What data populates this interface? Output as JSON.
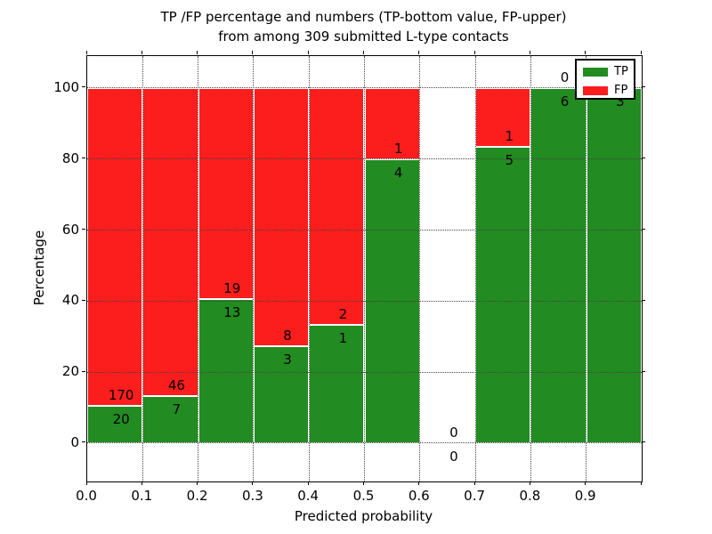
{
  "chart_data": {
    "type": "bar",
    "stacked": true,
    "title": "TP /FP percentage and numbers (TP-bottom value, FP-upper) from among 309 submitted L-type contacts",
    "title_lines": [
      "TP /FP percentage and numbers (TP-bottom value, FP-upper)",
      "from among 309 submitted L-type contacts"
    ],
    "xlabel": "Predicted probability",
    "ylabel": "Percentage",
    "total_contacts": 309,
    "xlim": [
      0.0,
      1.0
    ],
    "ylim": [
      -10.8,
      109.0
    ],
    "x_tick_labels": [
      "0.0",
      "0.1",
      "0.2",
      "0.3",
      "0.4",
      "0.5",
      "0.6",
      "0.7",
      "0.8",
      "0.9"
    ],
    "y_ticks": [
      0,
      20,
      40,
      60,
      80,
      100
    ],
    "grid": true,
    "bins": [
      {
        "range": [
          0.0,
          0.1
        ],
        "tp": 20,
        "fp": 170
      },
      {
        "range": [
          0.1,
          0.2
        ],
        "tp": 7,
        "fp": 46
      },
      {
        "range": [
          0.2,
          0.3
        ],
        "tp": 13,
        "fp": 19
      },
      {
        "range": [
          0.3,
          0.4
        ],
        "tp": 3,
        "fp": 8
      },
      {
        "range": [
          0.4,
          0.5
        ],
        "tp": 1,
        "fp": 2
      },
      {
        "range": [
          0.5,
          0.6
        ],
        "tp": 4,
        "fp": 1
      },
      {
        "range": [
          0.6,
          0.7
        ],
        "tp": 0,
        "fp": 0
      },
      {
        "range": [
          0.7,
          0.8
        ],
        "tp": 5,
        "fp": 1
      },
      {
        "range": [
          0.8,
          0.9
        ],
        "tp": 6,
        "fp": 0
      },
      {
        "range": [
          0.9,
          1.0
        ],
        "tp": 3,
        "fp": 0
      }
    ],
    "legend": [
      {
        "label": "TP",
        "color": "#228b22"
      },
      {
        "label": "FP",
        "color": "#fc1d1d"
      }
    ],
    "legend_position": "upper right"
  }
}
